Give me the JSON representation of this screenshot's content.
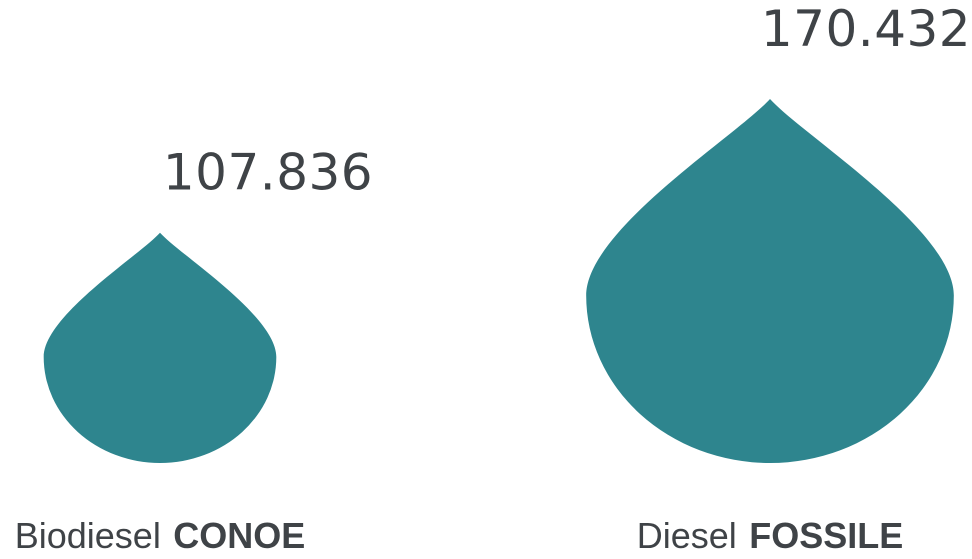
{
  "chart_data": {
    "type": "bar",
    "chart_style": "proportional droplet icons",
    "categories": [
      {
        "light": "Biodiesel",
        "bold": "CONOE"
      },
      {
        "light": "Diesel",
        "bold": "FOSSILE"
      }
    ],
    "values": [
      107.836,
      170.432
    ],
    "value_labels": [
      "107.836",
      "170.432"
    ],
    "colors": {
      "drop": "#2e858e",
      "text": "#3f4347"
    },
    "title": "",
    "xlabel": "",
    "ylabel": ""
  }
}
